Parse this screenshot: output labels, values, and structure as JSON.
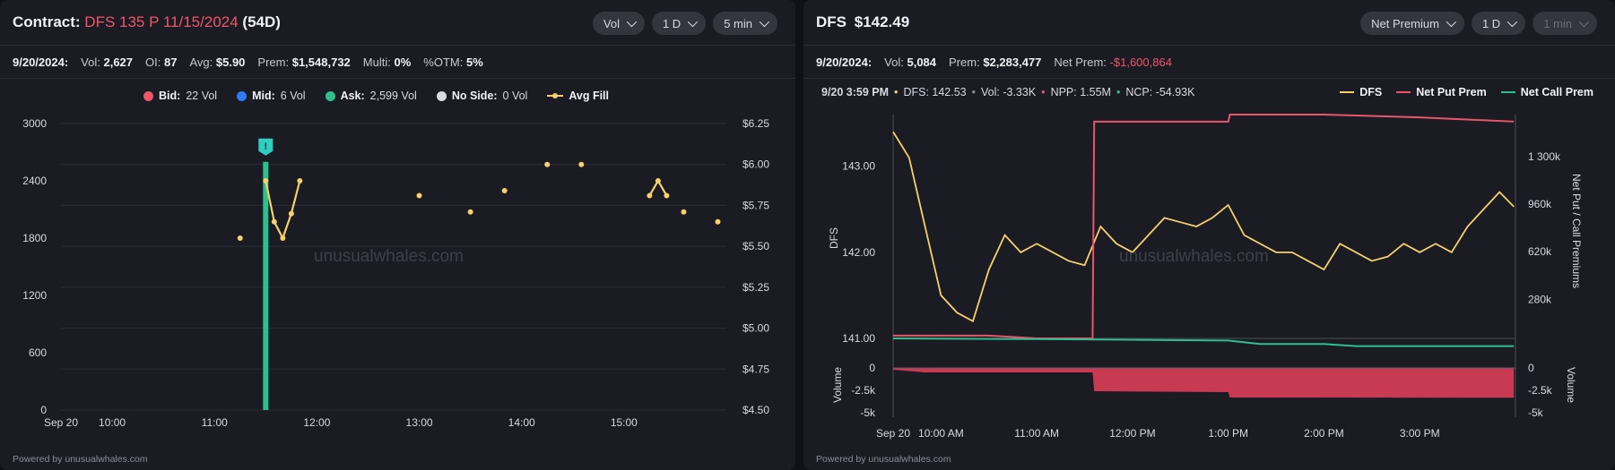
{
  "left": {
    "title_label": "Contract:",
    "contract": "DFS 135 P 11/15/2024",
    "dte": "(54D)",
    "pills": [
      "Vol",
      "1 D",
      "5 min"
    ],
    "stats": [
      {
        "label": "9/20/2024:",
        "value": ""
      },
      {
        "label": "Vol:",
        "value": "2,627"
      },
      {
        "label": "OI:",
        "value": "87"
      },
      {
        "label": "Avg:",
        "value": "$5.90"
      },
      {
        "label": "Prem:",
        "value": "$1,548,732"
      },
      {
        "label": "Multi:",
        "value": "0%"
      },
      {
        "label": "%OTM:",
        "value": "5%"
      }
    ],
    "legend": [
      {
        "name": "Bid:",
        "value": "22 Vol",
        "color": "#f0566a"
      },
      {
        "name": "Mid:",
        "value": "6 Vol",
        "color": "#2f7bf5"
      },
      {
        "name": "Ask:",
        "value": "2,599 Vol",
        "color": "#2fbf8f"
      },
      {
        "name": "No Side:",
        "value": "0 Vol",
        "color": "#d8dae2"
      },
      {
        "name": "Avg Fill",
        "value": "",
        "color": "#f6d06a"
      }
    ],
    "footer": "Powered by unusualwhales.com",
    "watermark": "unusualwhales.com"
  },
  "right": {
    "ticker": "DFS",
    "price": "$142.49",
    "pills": [
      "Net Premium",
      "1 D",
      "1 min"
    ],
    "stats": [
      {
        "label": "9/20/2024:",
        "value": ""
      },
      {
        "label": "Vol:",
        "value": "5,084"
      },
      {
        "label": "Prem:",
        "value": "$2,283,477"
      },
      {
        "label": "Net Prem:",
        "value": "-$1,600,864"
      }
    ],
    "tooltip": {
      "time": "9/20 3:59 PM",
      "items": [
        "DFS: 142.53",
        "Vol: -3.33K",
        "NPP: 1.55M",
        "NCP: -54.93K"
      ]
    },
    "legend": [
      "DFS",
      "Net Put Prem",
      "Net Call Prem"
    ],
    "footer": "Powered by unusualwhales.com",
    "watermark": "unusualwhales.com"
  },
  "chart_data": [
    {
      "type": "bar",
      "title": "",
      "x_ticks": [
        "Sep 20",
        "10:00",
        "11:00",
        "12:00",
        "13:00",
        "14:00",
        "15:00"
      ],
      "y_ticks_left": [
        "0",
        "600",
        "1200",
        "1800",
        "2400",
        "3000"
      ],
      "y_ticks_right": [
        "$4.50",
        "$4.75",
        "$5.00",
        "$5.25",
        "$5.50",
        "$5.75",
        "$6.00",
        "$6.25"
      ],
      "ylim_left": [
        0,
        3000
      ],
      "ylim_right": [
        4.5,
        6.25
      ],
      "volume_bars": [
        {
          "time": "11:30",
          "ask_volume": 2599,
          "marker": "!"
        }
      ],
      "avg_fill": [
        {
          "time": "11:15",
          "price": 5.55
        },
        {
          "time": "11:30",
          "price": 5.9
        },
        {
          "time": "11:35",
          "price": 5.65
        },
        {
          "time": "11:40",
          "price": 5.55
        },
        {
          "time": "11:45",
          "price": 5.7
        },
        {
          "time": "11:50",
          "price": 5.9
        },
        {
          "time": "13:00",
          "price": 5.81
        },
        {
          "time": "13:30",
          "price": 5.71
        },
        {
          "time": "13:50",
          "price": 5.84
        },
        {
          "time": "14:15",
          "price": 6.0
        },
        {
          "time": "14:35",
          "price": 6.0
        },
        {
          "time": "15:15",
          "price": 5.81
        },
        {
          "time": "15:20",
          "price": 5.9
        },
        {
          "time": "15:25",
          "price": 5.81
        },
        {
          "time": "15:35",
          "price": 5.71
        },
        {
          "time": "15:55",
          "price": 5.65
        }
      ],
      "grid": true
    },
    {
      "type": "line",
      "x_ticks": [
        "Sep 20",
        "10:00 AM",
        "11:00 AM",
        "12:00 PM",
        "1:00 PM",
        "2:00 PM",
        "3:00 PM"
      ],
      "ylabel_left": "DFS",
      "ylabel_right": "Net Put / Call Premiums",
      "y_ticks_left": [
        "141.00",
        "142.00",
        "143.00"
      ],
      "y_ticks_right": [
        "280k",
        "620k",
        "960k",
        "1 300k"
      ],
      "lower_ylabel": "Volume",
      "lower_y_ticks": [
        "0",
        "-2.5k",
        "-5k"
      ],
      "ylim_left": [
        141.0,
        143.6
      ],
      "ylim_right": [
        0,
        1600000
      ],
      "lower_ylim": [
        -5500,
        500
      ],
      "series": [
        {
          "name": "DFS",
          "color": "#f6d06a",
          "x": [
            "09:30",
            "09:40",
            "09:50",
            "10:00",
            "10:10",
            "10:20",
            "10:30",
            "10:40",
            "10:50",
            "11:00",
            "11:10",
            "11:20",
            "11:30",
            "11:40",
            "11:50",
            "12:00",
            "12:10",
            "12:20",
            "12:30",
            "12:40",
            "12:50",
            "13:00",
            "13:10",
            "13:20",
            "13:30",
            "13:40",
            "13:50",
            "14:00",
            "14:10",
            "14:20",
            "14:30",
            "14:40",
            "14:50",
            "15:00",
            "15:10",
            "15:20",
            "15:30",
            "15:40",
            "15:50",
            "15:59"
          ],
          "values": [
            143.4,
            143.1,
            142.3,
            141.5,
            141.3,
            141.2,
            141.8,
            142.2,
            142.0,
            142.1,
            142.0,
            141.9,
            141.85,
            142.3,
            142.1,
            142.0,
            142.2,
            142.4,
            142.35,
            142.3,
            142.4,
            142.55,
            142.2,
            142.1,
            142.0,
            142.0,
            141.9,
            141.8,
            142.1,
            142.0,
            141.9,
            141.95,
            142.1,
            142.0,
            142.1,
            142.0,
            142.3,
            142.5,
            142.7,
            142.53
          ]
        },
        {
          "name": "Net Put Prem",
          "color": "#e8566a",
          "x": [
            "09:30",
            "10:30",
            "11:00",
            "11:35",
            "11:36",
            "12:00",
            "13:00",
            "13:01",
            "14:00",
            "15:00",
            "15:59"
          ],
          "values": [
            20000,
            20000,
            0,
            0,
            1550000,
            1550000,
            1550000,
            1600000,
            1600000,
            1580000,
            1550000
          ]
        },
        {
          "name": "Net Call Prem",
          "color": "#2fbf8f",
          "x": [
            "09:30",
            "11:00",
            "12:00",
            "13:00",
            "13:20",
            "14:00",
            "14:20",
            "15:00",
            "15:59"
          ],
          "values": [
            0,
            -5000,
            -10000,
            -15000,
            -40000,
            -40000,
            -54930,
            -54930,
            -54930
          ]
        }
      ],
      "volume": {
        "color": "#c83a52",
        "x": [
          "09:30",
          "09:50",
          "11:35",
          "11:36",
          "13:00",
          "13:01",
          "15:59"
        ],
        "values": [
          -200,
          -500,
          -500,
          -2600,
          -2700,
          -3300,
          -3330
        ]
      },
      "grid": true
    }
  ]
}
